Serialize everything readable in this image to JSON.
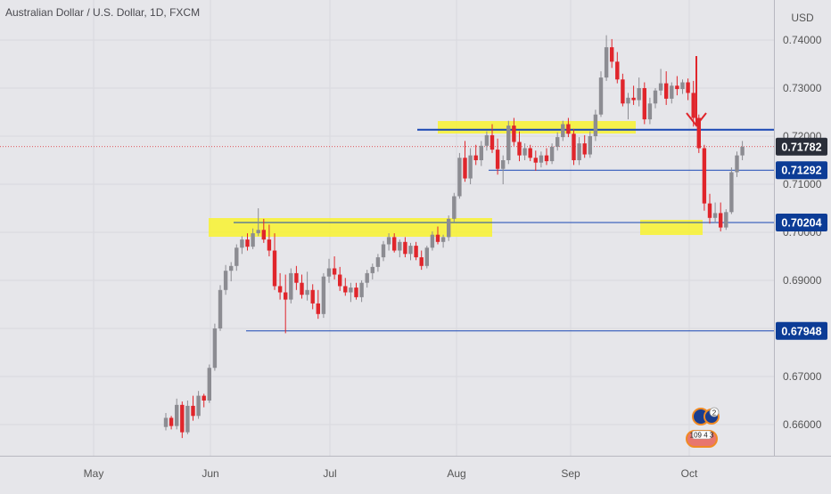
{
  "chart_title": "Australian Dollar / U.S. Dollar, 1D, FXCM",
  "currency_label": "USD",
  "colors": {
    "background": "#e6e6ea",
    "up_candle": "#8c8c92",
    "down_candle": "#e0252b",
    "level_line": "#1846b4",
    "highlight": "#f7f23a",
    "price_tag_dark": "#2a2e39",
    "price_tag_blue": "#0c3c96",
    "arrow": "#e0252b"
  },
  "badges": {
    "au_count": "2",
    "us_counts": "109 4 3"
  },
  "chart_data": {
    "type": "candlestick",
    "title": "Australian Dollar / U.S. Dollar, 1D, FXCM",
    "y_unit": "USD",
    "x_ticks": [
      "May",
      "Jun",
      "Jul",
      "Aug",
      "Sep",
      "Oct"
    ],
    "y_ticks": [
      "0.74000",
      "0.73000",
      "0.72000",
      "0.71000",
      "0.70000",
      "0.69000",
      "0.68000",
      "0.67000",
      "0.66000"
    ],
    "ylim": [
      0.6555,
      0.7452
    ],
    "price_tags": [
      {
        "value": "0.71782",
        "style": "current"
      },
      {
        "value": "0.71292",
        "style": "level"
      },
      {
        "value": "0.70204",
        "style": "level"
      },
      {
        "value": "0.67948",
        "style": "level"
      }
    ],
    "candles": [
      [
        0.6595,
        0.6624,
        0.6588,
        0.6614
      ],
      [
        0.6614,
        0.6618,
        0.659,
        0.6597
      ],
      [
        0.6597,
        0.6654,
        0.659,
        0.6641
      ],
      [
        0.6641,
        0.6648,
        0.6572,
        0.6584
      ],
      [
        0.6584,
        0.665,
        0.658,
        0.6639
      ],
      [
        0.6639,
        0.666,
        0.6608,
        0.6618
      ],
      [
        0.6618,
        0.667,
        0.6612,
        0.666
      ],
      [
        0.666,
        0.6664,
        0.6636,
        0.665
      ],
      [
        0.665,
        0.6725,
        0.6645,
        0.6718
      ],
      [
        0.6718,
        0.681,
        0.6712,
        0.68
      ],
      [
        0.68,
        0.689,
        0.6795,
        0.688
      ],
      [
        0.688,
        0.6932,
        0.687,
        0.692
      ],
      [
        0.692,
        0.6938,
        0.6898,
        0.693
      ],
      [
        0.693,
        0.6975,
        0.692,
        0.6968
      ],
      [
        0.6968,
        0.6992,
        0.6955,
        0.6985
      ],
      [
        0.6985,
        0.6998,
        0.6962,
        0.697
      ],
      [
        0.697,
        0.7008,
        0.6965,
        0.6998
      ],
      [
        0.6998,
        0.705,
        0.6992,
        0.7005
      ],
      [
        0.7005,
        0.7028,
        0.6978,
        0.6985
      ],
      [
        0.6985,
        0.7016,
        0.695,
        0.6962
      ],
      [
        0.6962,
        0.6998,
        0.688,
        0.6888
      ],
      [
        0.6888,
        0.6915,
        0.686,
        0.6875
      ],
      [
        0.6875,
        0.6912,
        0.679,
        0.686
      ],
      [
        0.686,
        0.6925,
        0.6852,
        0.6915
      ],
      [
        0.6915,
        0.693,
        0.688,
        0.6895
      ],
      [
        0.6895,
        0.6912,
        0.6862,
        0.687
      ],
      [
        0.687,
        0.6918,
        0.6858,
        0.688
      ],
      [
        0.688,
        0.6892,
        0.684,
        0.6852
      ],
      [
        0.6852,
        0.688,
        0.682,
        0.683
      ],
      [
        0.683,
        0.6915,
        0.6822,
        0.6908
      ],
      [
        0.6908,
        0.6945,
        0.6895,
        0.6925
      ],
      [
        0.6925,
        0.695,
        0.6902,
        0.6912
      ],
      [
        0.6912,
        0.6928,
        0.6878,
        0.6888
      ],
      [
        0.6888,
        0.6905,
        0.6868,
        0.6875
      ],
      [
        0.6875,
        0.6895,
        0.6855,
        0.6885
      ],
      [
        0.6885,
        0.6895,
        0.686,
        0.6865
      ],
      [
        0.6865,
        0.69,
        0.6855,
        0.6895
      ],
      [
        0.6895,
        0.6922,
        0.6885,
        0.6915
      ],
      [
        0.6915,
        0.6935,
        0.6902,
        0.6928
      ],
      [
        0.6928,
        0.6955,
        0.6918,
        0.6948
      ],
      [
        0.6948,
        0.6982,
        0.694,
        0.6975
      ],
      [
        0.6975,
        0.6998,
        0.6962,
        0.699
      ],
      [
        0.699,
        0.6998,
        0.6958,
        0.6962
      ],
      [
        0.6962,
        0.6985,
        0.6948,
        0.698
      ],
      [
        0.698,
        0.699,
        0.6948,
        0.6955
      ],
      [
        0.6955,
        0.6978,
        0.6942,
        0.6972
      ],
      [
        0.6972,
        0.698,
        0.6942,
        0.6948
      ],
      [
        0.6948,
        0.6962,
        0.6922,
        0.693
      ],
      [
        0.693,
        0.6972,
        0.6925,
        0.6968
      ],
      [
        0.6968,
        0.7002,
        0.6962,
        0.6995
      ],
      [
        0.6995,
        0.7012,
        0.6975,
        0.698
      ],
      [
        0.698,
        0.6995,
        0.6968,
        0.699
      ],
      [
        0.699,
        0.7035,
        0.6982,
        0.7028
      ],
      [
        0.7028,
        0.7082,
        0.7022,
        0.7075
      ],
      [
        0.7075,
        0.7165,
        0.707,
        0.7155
      ],
      [
        0.7155,
        0.719,
        0.7105,
        0.7112
      ],
      [
        0.7112,
        0.7175,
        0.71,
        0.716
      ],
      [
        0.716,
        0.7182,
        0.714,
        0.715
      ],
      [
        0.715,
        0.719,
        0.7138,
        0.718
      ],
      [
        0.718,
        0.721,
        0.717,
        0.7202
      ],
      [
        0.7202,
        0.7225,
        0.7165,
        0.7172
      ],
      [
        0.7172,
        0.7195,
        0.712,
        0.7132
      ],
      [
        0.7132,
        0.716,
        0.71,
        0.715
      ],
      [
        0.715,
        0.7232,
        0.7142,
        0.7222
      ],
      [
        0.7222,
        0.7238,
        0.718,
        0.7188
      ],
      [
        0.7188,
        0.721,
        0.7148,
        0.716
      ],
      [
        0.716,
        0.7185,
        0.715,
        0.7175
      ],
      [
        0.7175,
        0.7182,
        0.7148,
        0.7155
      ],
      [
        0.7155,
        0.717,
        0.7128,
        0.7145
      ],
      [
        0.7145,
        0.7168,
        0.7135,
        0.716
      ],
      [
        0.716,
        0.7175,
        0.714,
        0.7148
      ],
      [
        0.7148,
        0.7185,
        0.7142,
        0.7178
      ],
      [
        0.7178,
        0.7208,
        0.717,
        0.7198
      ],
      [
        0.7198,
        0.7232,
        0.719,
        0.7225
      ],
      [
        0.7225,
        0.7238,
        0.7198,
        0.7205
      ],
      [
        0.7205,
        0.7215,
        0.714,
        0.715
      ],
      [
        0.715,
        0.7198,
        0.714,
        0.7185
      ],
      [
        0.7185,
        0.7202,
        0.7155,
        0.7162
      ],
      [
        0.7162,
        0.721,
        0.7155,
        0.72
      ],
      [
        0.72,
        0.7255,
        0.719,
        0.7245
      ],
      [
        0.7245,
        0.7335,
        0.724,
        0.7322
      ],
      [
        0.7322,
        0.741,
        0.7315,
        0.7385
      ],
      [
        0.7385,
        0.7402,
        0.7342,
        0.7355
      ],
      [
        0.7355,
        0.7375,
        0.731,
        0.7318
      ],
      [
        0.7318,
        0.733,
        0.7262,
        0.7268
      ],
      [
        0.7268,
        0.729,
        0.7235,
        0.728
      ],
      [
        0.728,
        0.7305,
        0.7265,
        0.7275
      ],
      [
        0.7275,
        0.7322,
        0.7262,
        0.73
      ],
      [
        0.73,
        0.7312,
        0.7225,
        0.7235
      ],
      [
        0.7235,
        0.728,
        0.7225,
        0.7268
      ],
      [
        0.7268,
        0.73,
        0.7258,
        0.7295
      ],
      [
        0.7295,
        0.734,
        0.7285,
        0.731
      ],
      [
        0.731,
        0.7335,
        0.7265,
        0.7278
      ],
      [
        0.7278,
        0.7312,
        0.7268,
        0.7305
      ],
      [
        0.7305,
        0.7325,
        0.7285,
        0.7298
      ],
      [
        0.7298,
        0.7318,
        0.7288,
        0.7312
      ],
      [
        0.7312,
        0.732,
        0.7275,
        0.729
      ],
      [
        0.729,
        0.7315,
        0.722,
        0.7238
      ],
      [
        0.7238,
        0.7245,
        0.7165,
        0.7175
      ],
      [
        0.7175,
        0.7182,
        0.7045,
        0.706
      ],
      [
        0.706,
        0.708,
        0.7018,
        0.703
      ],
      [
        0.703,
        0.7062,
        0.702,
        0.704
      ],
      [
        0.704,
        0.7062,
        0.7002,
        0.701
      ],
      [
        0.701,
        0.7048,
        0.7005,
        0.7042
      ],
      [
        0.7042,
        0.7135,
        0.7038,
        0.7125
      ],
      [
        0.7125,
        0.7168,
        0.7115,
        0.716
      ],
      [
        0.716,
        0.719,
        0.715,
        0.7178
      ]
    ]
  }
}
